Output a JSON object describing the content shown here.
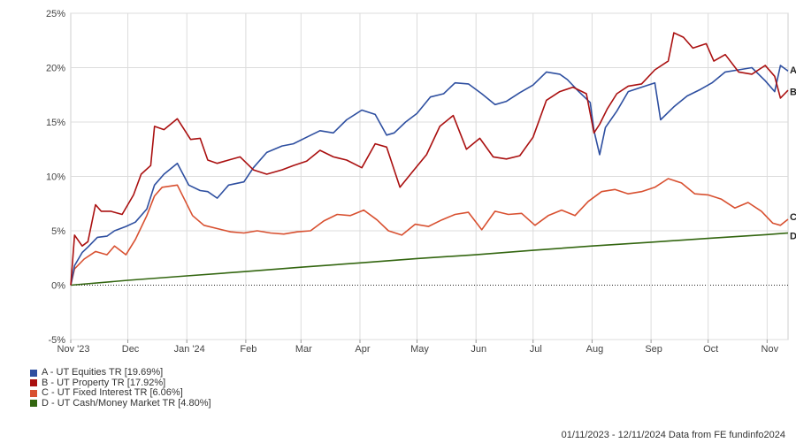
{
  "chart_data": {
    "type": "line",
    "title": "",
    "xlabel": "",
    "ylabel": "",
    "ylim": [
      -5,
      25
    ],
    "y_ticks": [
      -5,
      0,
      5,
      10,
      15,
      20,
      25
    ],
    "y_tick_labels": [
      "-5%",
      "0%",
      "5%",
      "10%",
      "15%",
      "20%",
      "25%"
    ],
    "x_tick_labels": [
      "Nov '23",
      "Dec",
      "Jan '24",
      "Feb",
      "Mar",
      "Apr",
      "May",
      "Jun",
      "Jul",
      "Aug",
      "Sep",
      "Oct",
      "Nov"
    ],
    "x_range": [
      "2023-11-01",
      "2024-11-12"
    ],
    "grid": "vertical and horizontal, light grey; dotted zero line",
    "legend_position": "bottom-left",
    "series": [
      {
        "key": "A",
        "name": "A - UT Equities TR [19.69%]",
        "color": "#2e4fa0",
        "x": [
          "2023-11-01",
          "2023-11-03",
          "2023-11-07",
          "2023-11-10",
          "2023-11-15",
          "2023-11-20",
          "2023-11-24",
          "2023-11-30",
          "2023-12-05",
          "2023-12-11",
          "2023-12-15",
          "2023-12-20",
          "2023-12-27",
          "2024-01-02",
          "2024-01-08",
          "2024-01-12",
          "2024-01-17",
          "2024-01-23",
          "2024-01-31",
          "2024-02-05",
          "2024-02-12",
          "2024-02-20",
          "2024-02-26",
          "2024-03-04",
          "2024-03-11",
          "2024-03-18",
          "2024-03-25",
          "2024-04-02",
          "2024-04-09",
          "2024-04-15",
          "2024-04-19",
          "2024-04-25",
          "2024-05-01",
          "2024-05-08",
          "2024-05-15",
          "2024-05-21",
          "2024-05-28",
          "2024-06-04",
          "2024-06-11",
          "2024-06-17",
          "2024-06-24",
          "2024-07-01",
          "2024-07-08",
          "2024-07-15",
          "2024-07-19",
          "2024-07-25",
          "2024-07-31",
          "2024-08-02",
          "2024-08-05",
          "2024-08-08",
          "2024-08-14",
          "2024-08-20",
          "2024-08-27",
          "2024-09-03",
          "2024-09-06",
          "2024-09-13",
          "2024-09-20",
          "2024-09-27",
          "2024-10-03",
          "2024-10-10",
          "2024-10-17",
          "2024-10-24",
          "2024-10-31",
          "2024-11-05",
          "2024-11-08",
          "2024-11-12"
        ],
        "y": [
          0,
          1.8,
          3.0,
          3.5,
          4.4,
          4.5,
          5.0,
          5.4,
          5.8,
          7.0,
          9.2,
          10.2,
          11.2,
          9.2,
          8.7,
          8.6,
          8.0,
          9.2,
          9.5,
          10.8,
          12.2,
          12.8,
          13.0,
          13.6,
          14.2,
          14.0,
          15.2,
          16.1,
          15.7,
          13.8,
          14.0,
          15.0,
          15.8,
          17.3,
          17.6,
          18.6,
          18.5,
          17.6,
          16.6,
          16.9,
          17.7,
          18.4,
          19.6,
          19.4,
          18.9,
          17.8,
          16.8,
          14.2,
          12.0,
          14.5,
          16.0,
          17.8,
          18.2,
          18.6,
          15.2,
          16.4,
          17.4,
          18.0,
          18.6,
          19.6,
          19.8,
          20.0,
          18.8,
          17.8,
          20.2,
          19.69
        ]
      },
      {
        "key": "B",
        "name": "B - UT Property TR [17.92%]",
        "color": "#aa1010",
        "x": [
          "2023-11-01",
          "2023-11-03",
          "2023-11-07",
          "2023-11-10",
          "2023-11-14",
          "2023-11-17",
          "2023-11-22",
          "2023-11-28",
          "2023-12-04",
          "2023-12-08",
          "2023-12-13",
          "2023-12-15",
          "2023-12-20",
          "2023-12-27",
          "2024-01-03",
          "2024-01-08",
          "2024-01-12",
          "2024-01-17",
          "2024-01-23",
          "2024-01-29",
          "2024-02-05",
          "2024-02-12",
          "2024-02-20",
          "2024-02-26",
          "2024-03-04",
          "2024-03-11",
          "2024-03-18",
          "2024-03-25",
          "2024-04-02",
          "2024-04-09",
          "2024-04-15",
          "2024-04-22",
          "2024-04-29",
          "2024-05-06",
          "2024-05-13",
          "2024-05-20",
          "2024-05-27",
          "2024-06-03",
          "2024-06-10",
          "2024-06-17",
          "2024-06-24",
          "2024-07-01",
          "2024-07-08",
          "2024-07-15",
          "2024-07-22",
          "2024-07-29",
          "2024-08-02",
          "2024-08-05",
          "2024-08-09",
          "2024-08-14",
          "2024-08-20",
          "2024-08-27",
          "2024-09-03",
          "2024-09-10",
          "2024-09-13",
          "2024-09-18",
          "2024-09-23",
          "2024-09-30",
          "2024-10-04",
          "2024-10-10",
          "2024-10-17",
          "2024-10-24",
          "2024-10-31",
          "2024-11-05",
          "2024-11-08",
          "2024-11-12"
        ],
        "y": [
          0,
          4.6,
          3.6,
          4.0,
          7.4,
          6.8,
          6.8,
          6.5,
          8.3,
          10.2,
          11.0,
          14.6,
          14.3,
          15.3,
          13.4,
          13.5,
          11.5,
          11.2,
          11.5,
          11.8,
          10.6,
          10.2,
          10.6,
          11.0,
          11.4,
          12.4,
          11.8,
          11.5,
          10.8,
          13.0,
          12.7,
          9.0,
          10.5,
          12.0,
          14.6,
          15.6,
          12.5,
          13.5,
          11.8,
          11.6,
          11.9,
          13.6,
          17.0,
          17.8,
          18.2,
          17.6,
          14.0,
          14.8,
          16.2,
          17.6,
          18.3,
          18.5,
          19.8,
          20.6,
          23.2,
          22.8,
          21.8,
          22.2,
          20.6,
          21.2,
          19.6,
          19.4,
          20.2,
          19.2,
          17.2,
          17.92
        ]
      },
      {
        "key": "C",
        "name": "C - UT Fixed Interest TR [6.06%]",
        "color": "#d85030",
        "x": [
          "2023-11-01",
          "2023-11-03",
          "2023-11-08",
          "2023-11-14",
          "2023-11-20",
          "2023-11-24",
          "2023-11-30",
          "2023-12-05",
          "2023-12-11",
          "2023-12-15",
          "2023-12-19",
          "2023-12-27",
          "2024-01-04",
          "2024-01-10",
          "2024-01-17",
          "2024-01-24",
          "2024-01-31",
          "2024-02-07",
          "2024-02-14",
          "2024-02-21",
          "2024-02-28",
          "2024-03-06",
          "2024-03-13",
          "2024-03-20",
          "2024-03-27",
          "2024-04-03",
          "2024-04-10",
          "2024-04-16",
          "2024-04-23",
          "2024-04-30",
          "2024-05-07",
          "2024-05-14",
          "2024-05-21",
          "2024-05-28",
          "2024-06-04",
          "2024-06-11",
          "2024-06-18",
          "2024-06-25",
          "2024-07-02",
          "2024-07-09",
          "2024-07-16",
          "2024-07-23",
          "2024-07-30",
          "2024-08-06",
          "2024-08-13",
          "2024-08-20",
          "2024-08-27",
          "2024-09-03",
          "2024-09-10",
          "2024-09-17",
          "2024-09-24",
          "2024-10-01",
          "2024-10-08",
          "2024-10-15",
          "2024-10-22",
          "2024-10-29",
          "2024-11-04",
          "2024-11-08",
          "2024-11-12"
        ],
        "y": [
          0,
          1.5,
          2.4,
          3.1,
          2.8,
          3.6,
          2.8,
          4.2,
          6.4,
          8.2,
          9.0,
          9.2,
          6.4,
          5.5,
          5.2,
          4.9,
          4.8,
          5.0,
          4.8,
          4.7,
          4.9,
          5.0,
          5.9,
          6.5,
          6.4,
          6.9,
          6.0,
          5.0,
          4.6,
          5.6,
          5.4,
          6.0,
          6.5,
          6.7,
          5.1,
          6.8,
          6.5,
          6.6,
          5.5,
          6.4,
          6.9,
          6.4,
          7.7,
          8.6,
          8.8,
          8.4,
          8.6,
          9.0,
          9.8,
          9.4,
          8.4,
          8.3,
          7.9,
          7.1,
          7.6,
          6.8,
          5.7,
          5.5,
          6.06
        ]
      },
      {
        "key": "D",
        "name": "D - UT Cash/Money Market TR [4.80%]",
        "color": "#336610",
        "x": [
          "2023-11-01",
          "2023-12-01",
          "2024-01-01",
          "2024-02-01",
          "2024-03-01",
          "2024-04-01",
          "2024-05-01",
          "2024-06-01",
          "2024-07-01",
          "2024-08-01",
          "2024-09-01",
          "2024-10-01",
          "2024-11-01",
          "2024-11-12"
        ],
        "y": [
          0,
          0.45,
          0.85,
          1.25,
          1.65,
          2.05,
          2.45,
          2.8,
          3.2,
          3.6,
          3.95,
          4.3,
          4.65,
          4.8
        ]
      }
    ]
  },
  "legend": {
    "items": [
      {
        "label": "A - UT Equities TR [19.69%]",
        "color": "#2e4fa0"
      },
      {
        "label": "B - UT Property TR [17.92%]",
        "color": "#aa1010"
      },
      {
        "label": "C - UT Fixed Interest TR [6.06%]",
        "color": "#d85030"
      },
      {
        "label": "D - UT Cash/Money Market TR [4.80%]",
        "color": "#336610"
      }
    ]
  },
  "footer": {
    "text": "01/11/2023 - 12/11/2024 Data from FE fundinfo2024"
  }
}
